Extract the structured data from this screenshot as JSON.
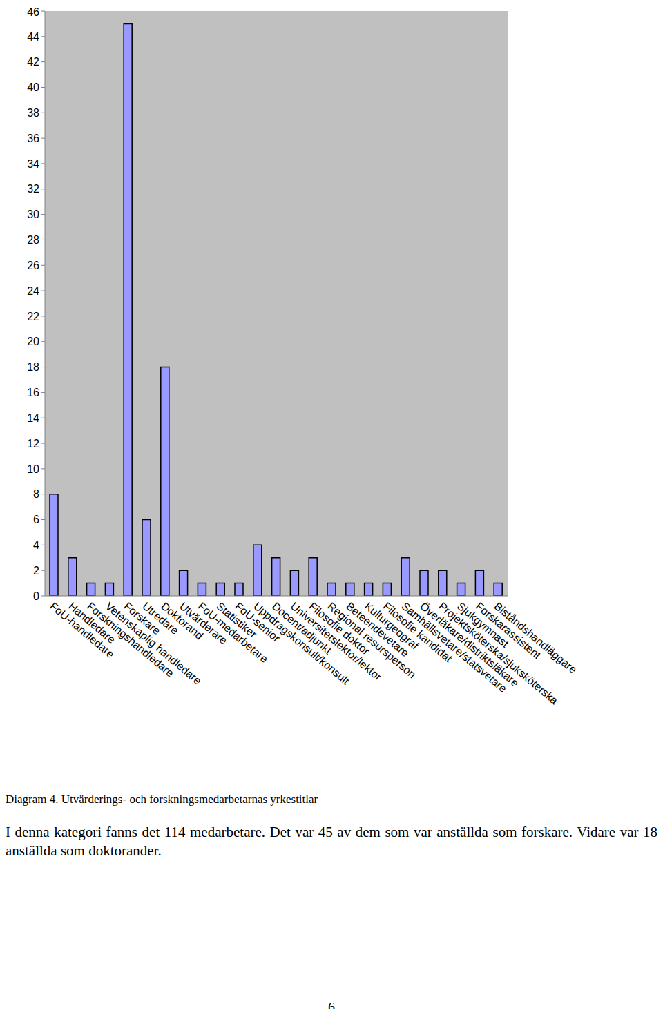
{
  "chart_data": {
    "type": "bar",
    "categories": [
      "FoU-handledare",
      "Handledare",
      "Forskningshandledare",
      "Vetenskaplig handledare",
      "Forskare",
      "Utredare",
      "Doktorand",
      "Utvärderare",
      "FoU-medarbetare",
      "Statistiker",
      "FoU-senior",
      "Uppdragskonsult/konsult",
      "Docent/adjunkt",
      "Universitetslektor/lektor",
      "Filosofie doktor",
      "Regional resursperson",
      "Beteendevetare",
      "Kulturgeograf",
      "Filosofie kandidat",
      "Samhällsvetare/statsvetare",
      "Överläkare/distriktsläkare",
      "Projektsköterska/sjuksköterska",
      "Sjukgymnast",
      "Forskarassistent",
      "Biståndshandläggare"
    ],
    "values": [
      8,
      3,
      1,
      1,
      45,
      6,
      18,
      2,
      1,
      1,
      1,
      4,
      3,
      2,
      3,
      1,
      1,
      1,
      1,
      3,
      2,
      2,
      1,
      2,
      1
    ],
    "color": "#9999ff",
    "ylim": [
      0,
      46
    ],
    "yticks": [
      0,
      2,
      4,
      6,
      8,
      10,
      12,
      14,
      16,
      18,
      20,
      22,
      24,
      26,
      28,
      30,
      32,
      34,
      36,
      38,
      40,
      42,
      44,
      46
    ],
    "grid": false
  },
  "caption": "Diagram 4. Utvärderings- och forskningsmedarbetarnas yrkestitlar",
  "paragraph": "I denna kategori fanns det 114 medarbetare. Det var 45 av dem som var anställda som forskare. Vidare var 18 anställda som doktorander.",
  "page_number": 6
}
